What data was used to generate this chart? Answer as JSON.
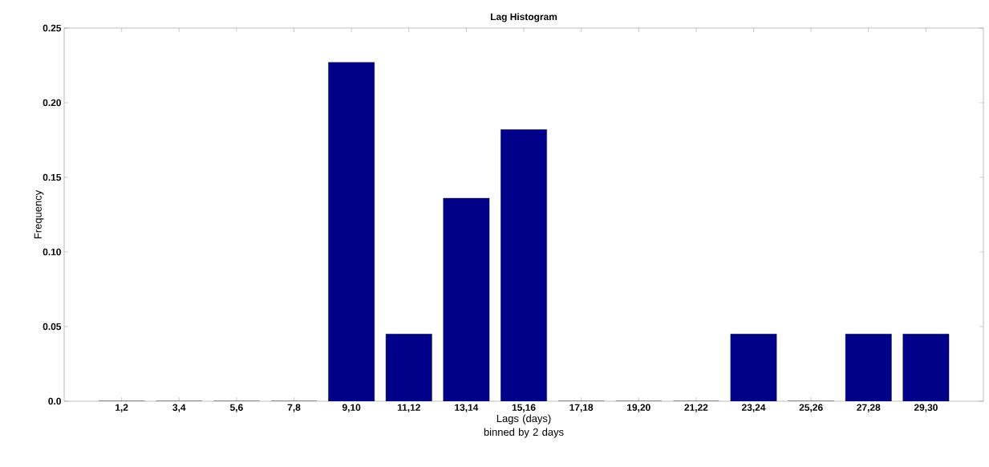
{
  "chart_data": {
    "type": "bar",
    "title": "Lag Histogram",
    "xlabel": "Lags (days) binned by 2 days",
    "ylabel": "Frequency",
    "categories": [
      "1,2",
      "3,4",
      "5,6",
      "7,8",
      "9,10",
      "11,12",
      "13,14",
      "15,16",
      "17,18",
      "19,20",
      "21,22",
      "23,24",
      "25,26",
      "27,28",
      "29,30"
    ],
    "values": [
      0,
      0,
      0,
      0,
      0.227,
      0.045,
      0.136,
      0.182,
      0,
      0,
      0,
      0.045,
      0,
      0.045,
      0.045
    ],
    "color": "#000088",
    "ylim": [
      0,
      0.25
    ],
    "yticks": [
      {
        "value": 0,
        "label": "0.0"
      },
      0.05,
      {
        "value": 0.1,
        "label": "0.10"
      },
      0.15,
      {
        "value": 0.2,
        "label": "0.20"
      },
      0.25
    ],
    "grid": false
  }
}
